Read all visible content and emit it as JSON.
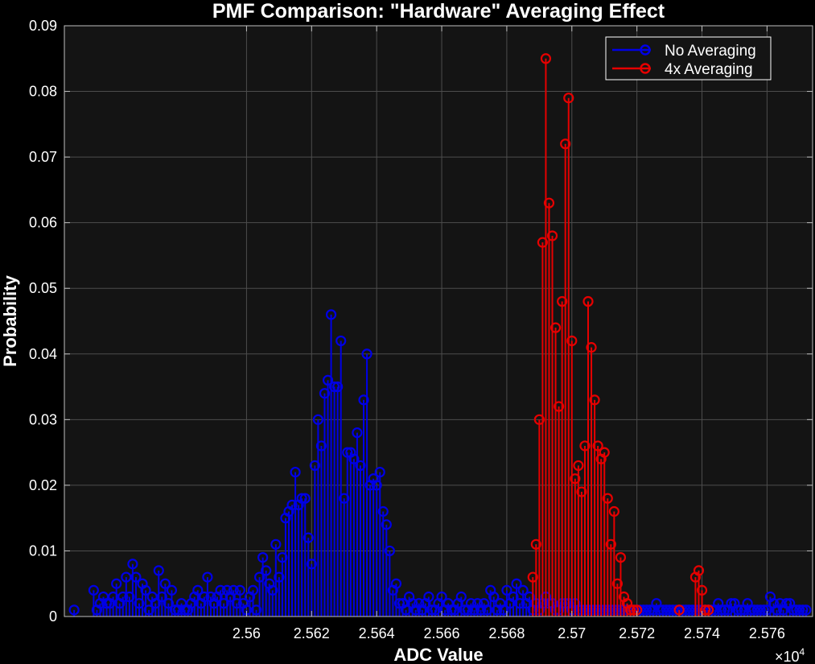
{
  "chart_data": {
    "type": "stem",
    "title": "PMF Comparison: \"Hardware\" Averaging Effect",
    "xlabel": "ADC Value",
    "ylabel": "Probability",
    "x_exponent_label": "×10",
    "x_exponent_power": "4",
    "xlim": [
      25544,
      25774
    ],
    "ylim": [
      0,
      0.09
    ],
    "x_ticks": [
      25600,
      25620,
      25640,
      25660,
      25680,
      25700,
      25720,
      25740,
      25760
    ],
    "x_tick_labels": [
      "2.56",
      "2.562",
      "2.564",
      "2.566",
      "2.568",
      "2.57",
      "2.572",
      "2.574",
      "2.576"
    ],
    "y_ticks": [
      0,
      0.01,
      0.02,
      0.03,
      0.04,
      0.05,
      0.06,
      0.07,
      0.08,
      0.09
    ],
    "y_tick_labels": [
      "0",
      "0.01",
      "0.02",
      "0.03",
      "0.04",
      "0.05",
      "0.06",
      "0.07",
      "0.08",
      "0.09"
    ],
    "grid": true,
    "legend_position": "top-right",
    "colors": {
      "background": "#000000",
      "axes_background": "#141414",
      "grid": "#4d4d4d",
      "axis": "#bfbfbf",
      "text": "#ffffff"
    },
    "series": [
      {
        "name": "No Averaging",
        "color": "#0000e6",
        "x": [
          25547,
          25553,
          25554,
          25555,
          25556,
          25557,
          25558,
          25559,
          25560,
          25561,
          25562,
          25563,
          25564,
          25565,
          25566,
          25567,
          25568,
          25569,
          25570,
          25571,
          25572,
          25573,
          25574,
          25575,
          25576,
          25577,
          25578,
          25579,
          25580,
          25581,
          25582,
          25583,
          25584,
          25585,
          25586,
          25587,
          25588,
          25589,
          25590,
          25591,
          25592,
          25593,
          25594,
          25595,
          25596,
          25597,
          25598,
          25599,
          25600,
          25601,
          25602,
          25603,
          25604,
          25605,
          25606,
          25607,
          25608,
          25609,
          25610,
          25611,
          25612,
          25613,
          25614,
          25615,
          25616,
          25617,
          25618,
          25619,
          25620,
          25621,
          25622,
          25623,
          25624,
          25625,
          25626,
          25627,
          25628,
          25629,
          25630,
          25631,
          25632,
          25633,
          25634,
          25635,
          25636,
          25637,
          25638,
          25639,
          25640,
          25641,
          25642,
          25643,
          25644,
          25645,
          25646,
          25647,
          25648,
          25649,
          25650,
          25651,
          25652,
          25653,
          25654,
          25655,
          25656,
          25657,
          25658,
          25659,
          25660,
          25661,
          25662,
          25663,
          25664,
          25665,
          25666,
          25667,
          25668,
          25669,
          25670,
          25671,
          25672,
          25673,
          25674,
          25675,
          25676,
          25677,
          25678,
          25679,
          25680,
          25681,
          25682,
          25683,
          25684,
          25685,
          25686,
          25687,
          25688,
          25689,
          25690,
          25691,
          25692,
          25693,
          25694,
          25695,
          25696,
          25697,
          25698,
          25699,
          25700,
          25701,
          25702,
          25703,
          25704,
          25705,
          25706,
          25707,
          25708,
          25709,
          25710,
          25711,
          25712,
          25713,
          25714,
          25715,
          25716,
          25717,
          25718,
          25719,
          25720,
          25721,
          25722,
          25723,
          25724,
          25725,
          25726,
          25727,
          25728,
          25729,
          25730,
          25731,
          25732,
          25733,
          25734,
          25735,
          25736,
          25737,
          25738,
          25739,
          25740,
          25741,
          25742,
          25743,
          25744,
          25745,
          25746,
          25747,
          25748,
          25749,
          25750,
          25751,
          25752,
          25753,
          25754,
          25755,
          25756,
          25757,
          25758,
          25759,
          25760,
          25761,
          25762,
          25763,
          25764,
          25765,
          25766,
          25767,
          25768,
          25769,
          25770,
          25771,
          25772
        ],
        "y": [
          0.001,
          0.004,
          0.001,
          0.002,
          0.003,
          0.002,
          0.002,
          0.003,
          0.005,
          0.002,
          0.003,
          0.006,
          0.003,
          0.008,
          0.006,
          0.002,
          0.005,
          0.004,
          0.001,
          0.003,
          0.002,
          0.007,
          0.003,
          0.005,
          0.002,
          0.004,
          0.001,
          0.001,
          0.002,
          0.001,
          0.001,
          0.002,
          0.003,
          0.004,
          0.002,
          0.003,
          0.006,
          0.003,
          0.002,
          0.003,
          0.004,
          0.002,
          0.004,
          0.003,
          0.004,
          0.002,
          0.004,
          0.002,
          0.001,
          0.003,
          0.004,
          0.001,
          0.006,
          0.009,
          0.007,
          0.005,
          0.004,
          0.011,
          0.006,
          0.009,
          0.015,
          0.016,
          0.017,
          0.022,
          0.017,
          0.018,
          0.018,
          0.012,
          0.008,
          0.023,
          0.03,
          0.026,
          0.034,
          0.036,
          0.046,
          0.035,
          0.035,
          0.042,
          0.018,
          0.025,
          0.025,
          0.024,
          0.028,
          0.023,
          0.033,
          0.04,
          0.02,
          0.021,
          0.02,
          0.022,
          0.016,
          0.014,
          0.01,
          0.004,
          0.005,
          0.002,
          0.002,
          0.001,
          0.003,
          0.002,
          0.001,
          0.002,
          0.001,
          0.002,
          0.003,
          0.001,
          0.001,
          0.002,
          0.003,
          0.001,
          0.002,
          0.001,
          0.001,
          0.002,
          0.003,
          0.001,
          0.001,
          0.002,
          0.001,
          0.002,
          0.001,
          0.002,
          0.001,
          0.004,
          0.003,
          0.001,
          0.002,
          0.001,
          0.004,
          0.002,
          0.003,
          0.005,
          0.002,
          0.004,
          0.002,
          0.003,
          0.001,
          0.002,
          0.001,
          0.002,
          0.003,
          0.002,
          0.002,
          0.001,
          0.001,
          0.002,
          0.002,
          0.002,
          0.001,
          0.002,
          0.001,
          0.001,
          0.001,
          0.001,
          0.001,
          0.001,
          0.001,
          0.001,
          0.001,
          0.001,
          0.001,
          0.001,
          0.001,
          0.001,
          0.001,
          0.001,
          0.001,
          0.001,
          0.001,
          0.001,
          0.001,
          0.001,
          0.001,
          0.001,
          0.002,
          0.001,
          0.001,
          0.001,
          0.001,
          0.001,
          0.001,
          0.001,
          0.001,
          0.001,
          0.001,
          0.001,
          0.001,
          0.001,
          0.001,
          0.001,
          0.001,
          0.001,
          0.001,
          0.002,
          0.001,
          0.001,
          0.001,
          0.002,
          0.002,
          0.001,
          0.001,
          0.001,
          0.002,
          0.001,
          0.001,
          0.001,
          0.001,
          0.001,
          0.001,
          0.003,
          0.002,
          0.001,
          0.002,
          0.001,
          0.002,
          0.002,
          0.001,
          0.001,
          0.001,
          0.001,
          0.001
        ]
      },
      {
        "name": "4x Averaging",
        "color": "#e60000",
        "x": [
          25688,
          25689,
          25690,
          25691,
          25692,
          25693,
          25694,
          25695,
          25696,
          25697,
          25698,
          25699,
          25700,
          25701,
          25702,
          25703,
          25704,
          25705,
          25706,
          25707,
          25708,
          25709,
          25710,
          25711,
          25712,
          25713,
          25714,
          25715,
          25716,
          25717,
          25718,
          25719,
          25720,
          25733,
          25738,
          25739,
          25740,
          25741,
          25742
        ],
        "y": [
          0.006,
          0.011,
          0.03,
          0.057,
          0.085,
          0.063,
          0.058,
          0.044,
          0.032,
          0.048,
          0.072,
          0.079,
          0.042,
          0.021,
          0.023,
          0.019,
          0.026,
          0.048,
          0.041,
          0.033,
          0.026,
          0.024,
          0.025,
          0.018,
          0.011,
          0.016,
          0.005,
          0.009,
          0.003,
          0.002,
          0.001,
          0.001,
          0.001,
          0.001,
          0.006,
          0.007,
          0.004,
          0.001,
          0.001
        ]
      }
    ]
  }
}
